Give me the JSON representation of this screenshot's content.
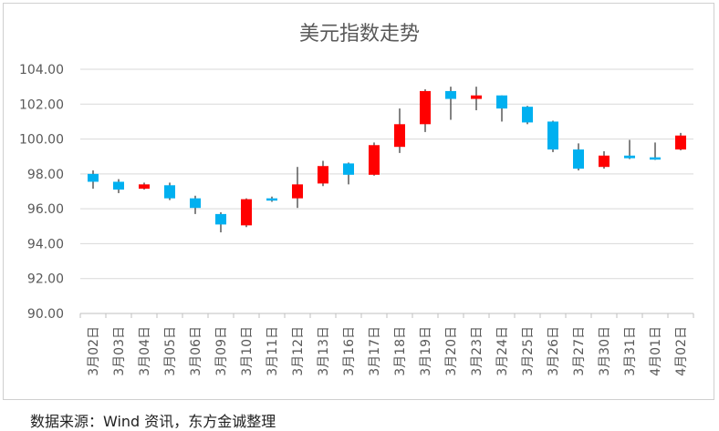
{
  "footer": "数据来源：Wind 资讯，东方金诚整理",
  "chart_data": {
    "type": "candlestick",
    "title": "美元指数走势",
    "ylim": [
      90,
      104
    ],
    "yticks": [
      90,
      92,
      94,
      96,
      98,
      100,
      102,
      104
    ],
    "ytick_labels": [
      "90.00",
      "92.00",
      "94.00",
      "96.00",
      "98.00",
      "100.00",
      "102.00",
      "104.00"
    ],
    "up_color": "#ff0000",
    "down_color": "#00b0f0",
    "wick_color": "#404040",
    "candles": [
      {
        "date": "3月02日",
        "open": 98.0,
        "close": 97.55,
        "high": 98.2,
        "low": 97.15
      },
      {
        "date": "3月03日",
        "open": 97.55,
        "close": 97.1,
        "high": 97.7,
        "low": 96.9
      },
      {
        "date": "3月04日",
        "open": 97.15,
        "close": 97.4,
        "high": 97.5,
        "low": 97.1
      },
      {
        "date": "3月05日",
        "open": 97.35,
        "close": 96.6,
        "high": 97.5,
        "low": 96.5
      },
      {
        "date": "3月06日",
        "open": 96.6,
        "close": 96.05,
        "high": 96.75,
        "low": 95.7
      },
      {
        "date": "3月09日",
        "open": 95.7,
        "close": 95.1,
        "high": 95.8,
        "low": 94.65
      },
      {
        "date": "3月10日",
        "open": 95.05,
        "close": 96.55,
        "high": 96.6,
        "low": 94.95
      },
      {
        "date": "3月11日",
        "open": 96.6,
        "close": 96.5,
        "high": 96.7,
        "low": 96.4
      },
      {
        "date": "3月12日",
        "open": 96.6,
        "close": 97.4,
        "high": 98.4,
        "low": 96.05
      },
      {
        "date": "3月13日",
        "open": 97.45,
        "close": 98.45,
        "high": 98.75,
        "low": 97.3
      },
      {
        "date": "3月16日",
        "open": 98.6,
        "close": 97.95,
        "high": 98.65,
        "low": 97.4
      },
      {
        "date": "3月17日",
        "open": 97.95,
        "close": 99.65,
        "high": 99.8,
        "low": 97.9
      },
      {
        "date": "3月18日",
        "open": 99.55,
        "close": 100.85,
        "high": 101.75,
        "low": 99.2
      },
      {
        "date": "3月19日",
        "open": 100.85,
        "close": 102.75,
        "high": 102.85,
        "low": 100.4
      },
      {
        "date": "3月20日",
        "open": 102.75,
        "close": 102.3,
        "high": 103.0,
        "low": 101.1
      },
      {
        "date": "3月23日",
        "open": 102.3,
        "close": 102.5,
        "high": 103.0,
        "low": 101.65
      },
      {
        "date": "3月24日",
        "open": 102.5,
        "close": 101.75,
        "high": 102.5,
        "low": 101.0
      },
      {
        "date": "3月25日",
        "open": 101.85,
        "close": 100.95,
        "high": 101.9,
        "low": 100.85
      },
      {
        "date": "3月26日",
        "open": 101.0,
        "close": 99.4,
        "high": 101.05,
        "low": 99.25
      },
      {
        "date": "3月27日",
        "open": 99.4,
        "close": 98.3,
        "high": 99.75,
        "low": 98.2
      },
      {
        "date": "3月30日",
        "open": 98.4,
        "close": 99.05,
        "high": 99.3,
        "low": 98.3
      },
      {
        "date": "3月31日",
        "open": 99.05,
        "close": 98.9,
        "high": 99.95,
        "low": 98.85
      },
      {
        "date": "4月01日",
        "open": 98.95,
        "close": 98.85,
        "high": 99.8,
        "low": 98.8
      },
      {
        "date": "4月02日",
        "open": 99.4,
        "close": 100.2,
        "high": 100.35,
        "low": 99.35
      }
    ]
  }
}
